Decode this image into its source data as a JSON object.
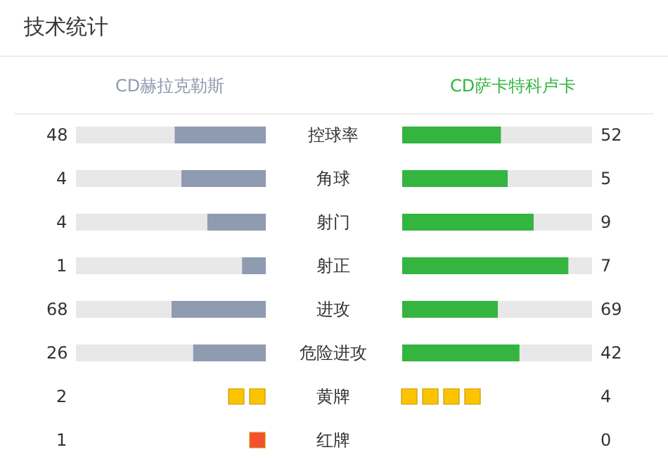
{
  "chart_data": {
    "type": "other",
    "title": "技术统计",
    "data_labels": true,
    "categories": [
      "控球率",
      "角球",
      "射门",
      "射正",
      "进攻",
      "危险进攻",
      "黄牌",
      "红牌"
    ],
    "series": [
      {
        "name": "CD赫拉克勒斯",
        "color": "#8f9bb1",
        "values": [
          48,
          4,
          4,
          1,
          68,
          26,
          2,
          1
        ],
        "colors": [
          "#8f9bb1",
          "#8f9bb1",
          "#8f9bb1",
          "#8f9bb1",
          "#8f9bb1",
          "#8f9bb1",
          "#fcc400",
          "#f4502f"
        ]
      },
      {
        "name": "CD萨卡特科卢卡",
        "color": "#33b540",
        "values": [
          52,
          5,
          9,
          7,
          69,
          42,
          4,
          0
        ],
        "colors": [
          "#33b540",
          "#33b540",
          "#33b540",
          "#33b540",
          "#33b540",
          "#33b540",
          "#fcc400",
          "#f4502f"
        ]
      }
    ]
  }
}
